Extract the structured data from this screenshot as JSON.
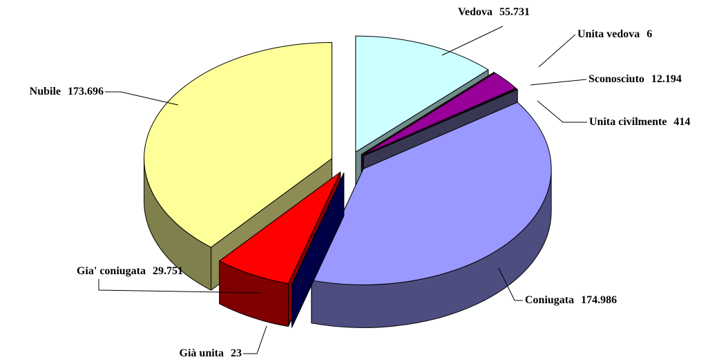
{
  "chart_data": {
    "type": "pie3d",
    "categories": [
      "Vedova",
      "Unita vedova",
      "Sconosciuto",
      "Unita civilmente",
      "Coniugata",
      "Già unita",
      "Gia' coniugata",
      "Nubile"
    ],
    "values": [
      55731,
      6,
      12194,
      414,
      174986,
      23,
      29751,
      173696
    ],
    "value_labels": [
      "55.731",
      "6",
      "12.194",
      "414",
      "174.986",
      "23",
      "29.751",
      "173.696"
    ],
    "colors": [
      "#ccffff",
      "#996600",
      "#990099",
      "#666699",
      "#9999ff",
      "#000080",
      "#ff0000",
      "#ffff99"
    ]
  }
}
